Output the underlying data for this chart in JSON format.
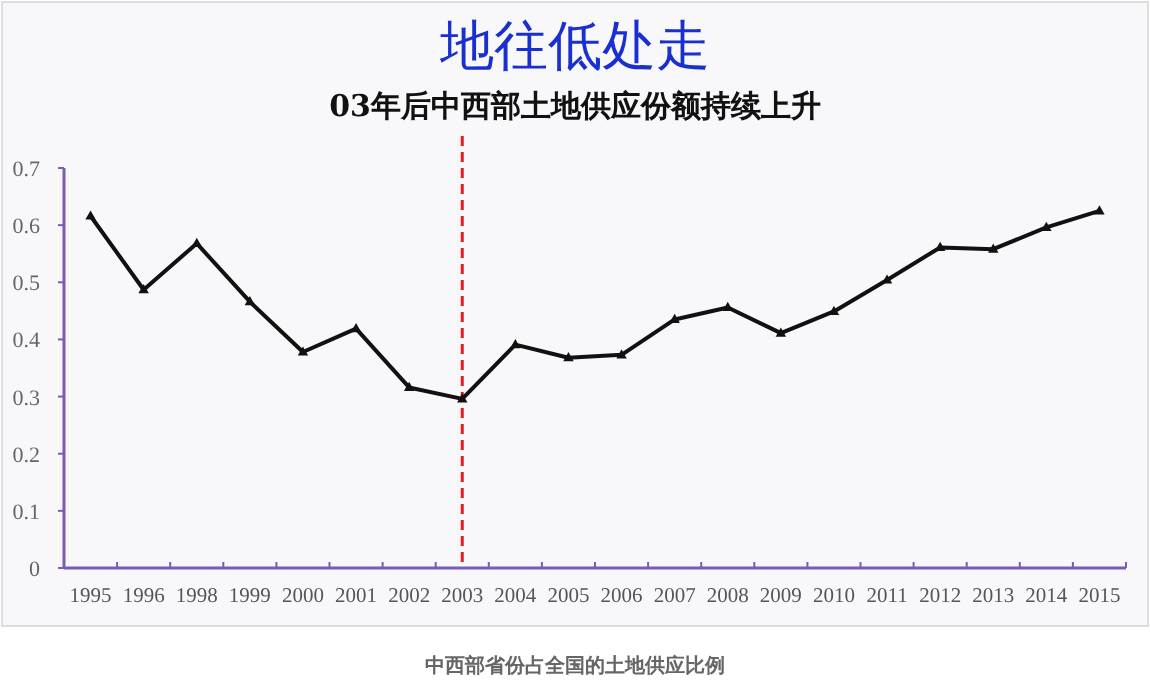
{
  "chart_data": {
    "type": "line",
    "title": "地往低处走",
    "subtitle": "03年后中西部土地供应份额持续上升",
    "annotations": [
      "中西部省份占全国的土地供应比例"
    ],
    "categories": [
      "1995",
      "1996",
      "1998",
      "1999",
      "2000",
      "2001",
      "2002",
      "2003",
      "2004",
      "2005",
      "2006",
      "2007",
      "2008",
      "2009",
      "2010",
      "2011",
      "2012",
      "2013",
      "2014",
      "2015"
    ],
    "series": [
      {
        "color": "#111111",
        "values": [
          0.616,
          0.487,
          0.568,
          0.466,
          0.378,
          0.419,
          0.316,
          0.296,
          0.391,
          0.368,
          0.373,
          0.435,
          0.456,
          0.411,
          0.449,
          0.504,
          0.561,
          0.558,
          0.596,
          0.625
        ]
      }
    ],
    "ylim": [
      0,
      0.7
    ],
    "yticks": [
      0,
      0.1,
      0.2,
      0.3,
      0.4,
      0.5,
      0.6,
      0.7
    ],
    "marker": "triangle",
    "line_style": "solid",
    "ref_lines": [
      {
        "axis": "x",
        "value": "2003",
        "color": "#e0201c",
        "line_style": "dashed"
      }
    ]
  }
}
